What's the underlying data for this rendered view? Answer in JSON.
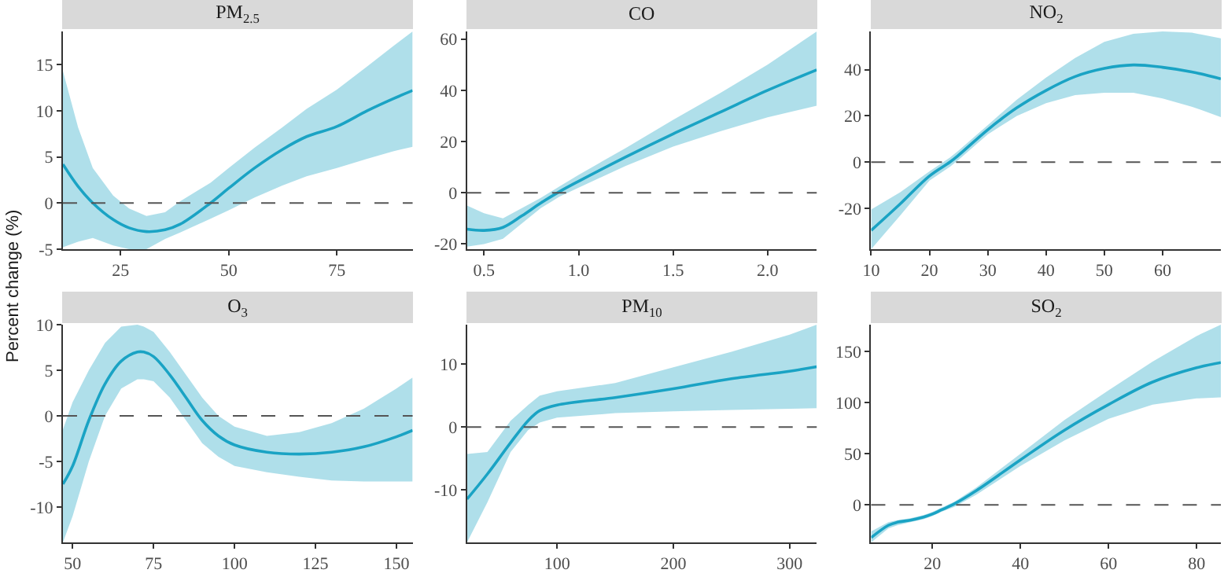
{
  "chart_data": [
    {
      "type": "line",
      "title": "PM$_{2.5}$",
      "ylabel": "Percent change (%)",
      "xlim": [
        11.7,
        92.5
      ],
      "xticks": [
        25,
        50,
        75
      ],
      "ylim": [
        -5,
        18.6
      ],
      "yticks": [
        -5,
        0,
        5,
        10,
        15
      ],
      "ref_lines": [
        {
          "axis": "y",
          "value": 0,
          "line_style": "dashed",
          "color": "#555555"
        }
      ],
      "series": [
        {
          "color": "#1aa3c4",
          "x": [
            11.7,
            15.2,
            18.6,
            23.3,
            27,
            31,
            35.3,
            38.8,
            45.8,
            50,
            56,
            62.4,
            68,
            75,
            82,
            88,
            92.5
          ],
          "values": [
            4.2,
            1.8,
            0,
            -1.8,
            -2.7,
            -3.1,
            -2.9,
            -2.3,
            0,
            1.6,
            3.8,
            5.8,
            7.2,
            8.3,
            10,
            11.3,
            12.2
          ],
          "lower": [
            -4.8,
            -4.2,
            -3.8,
            -4.6,
            -5,
            -5,
            -3.9,
            -3.2,
            -1.7,
            -0.8,
            0.6,
            1.9,
            2.9,
            3.8,
            4.8,
            5.6,
            6.1
          ],
          "upper": [
            14.3,
            8.2,
            3.8,
            0.8,
            -0.6,
            -1.4,
            -1,
            0.2,
            2.2,
            3.8,
            6,
            8.2,
            10.2,
            12.3,
            14.8,
            17,
            18.6
          ]
        }
      ]
    },
    {
      "type": "line",
      "title": "CO",
      "xlim": [
        0.41,
        2.26
      ],
      "xticks": [
        0.5,
        {
          "value": 1,
          "label": "1.0"
        },
        1.5,
        {
          "value": 2,
          "label": "2.0"
        }
      ],
      "ylim": [
        -22,
        63
      ],
      "yticks": [
        -20,
        0,
        20,
        40,
        60
      ],
      "ref_lines": [
        {
          "axis": "y",
          "value": 0,
          "line_style": "dashed",
          "color": "#555555"
        }
      ],
      "series": [
        {
          "color": "#1aa3c4",
          "x": [
            0.41,
            0.5,
            0.6,
            0.7,
            0.8,
            0.9,
            1.0,
            1.25,
            1.5,
            1.75,
            2.0,
            2.26
          ],
          "values": [
            -14.2,
            -14.7,
            -13.5,
            -9,
            -4,
            0.5,
            4.5,
            14,
            23,
            31.5,
            40,
            48
          ],
          "lower": [
            -21,
            -20,
            -18,
            -12,
            -6,
            -1.5,
            2,
            10.5,
            18,
            24,
            29.5,
            34
          ],
          "upper": [
            -5,
            -8,
            -10,
            -6,
            -2,
            2.5,
            7,
            17.5,
            28.5,
            39,
            50,
            63
          ]
        }
      ]
    },
    {
      "type": "line",
      "title": "NO$_{2}$",
      "xlim": [
        10,
        70
      ],
      "xticks": [
        10,
        20,
        30,
        40,
        50,
        60
      ],
      "ylim": [
        -37.6,
        56.5
      ],
      "yticks": [
        -20,
        0,
        20,
        40
      ],
      "ref_lines": [
        {
          "axis": "y",
          "value": 0,
          "line_style": "dashed",
          "color": "#555555"
        }
      ],
      "series": [
        {
          "color": "#1aa3c4",
          "x": [
            10,
            15,
            20,
            23.5,
            25,
            30,
            35,
            40,
            45,
            50,
            55,
            60,
            65,
            70
          ],
          "values": [
            -29.5,
            -18,
            -6,
            0,
            3,
            14,
            23.5,
            31,
            37,
            40.5,
            42,
            41,
            39,
            36
          ],
          "lower": [
            -37.6,
            -23,
            -8,
            -2,
            1,
            12,
            20,
            25.5,
            29,
            30,
            30,
            27.5,
            24,
            19.5
          ],
          "upper": [
            -20.5,
            -13,
            -4,
            2,
            5,
            16,
            27,
            36.5,
            45,
            52,
            55.5,
            56.5,
            56,
            53.5
          ]
        }
      ]
    },
    {
      "type": "line",
      "title": "O$_{3}$",
      "xlim": [
        47,
        155
      ],
      "xticks": [
        50,
        75,
        100,
        125,
        150
      ],
      "ylim": [
        -13.9,
        10
      ],
      "yticks": [
        -10,
        -5,
        0,
        5,
        10
      ],
      "ref_lines": [
        {
          "axis": "y",
          "value": 0,
          "line_style": "dashed",
          "color": "#555555"
        }
      ],
      "series": [
        {
          "color": "#1aa3c4",
          "x": [
            47,
            50,
            55,
            60,
            65,
            70,
            72,
            75,
            80,
            85,
            90,
            95,
            100,
            110,
            120,
            130,
            140,
            150,
            155
          ],
          "values": [
            -7.5,
            -5.5,
            -0.5,
            3.5,
            6,
            7,
            7,
            6.5,
            4.5,
            2,
            -0.5,
            -2.2,
            -3.2,
            -4,
            -4.2,
            -4,
            -3.4,
            -2.3,
            -1.6
          ],
          "lower": [
            -13.9,
            -11,
            -5,
            0,
            3,
            4,
            4,
            3.8,
            2,
            -0.5,
            -3,
            -4.5,
            -5.5,
            -6.2,
            -6.7,
            -7.1,
            -7.2,
            -7.2,
            -7.2
          ],
          "upper": [
            -1.5,
            1.5,
            5,
            8,
            9.8,
            10,
            9.8,
            9.2,
            7,
            4.5,
            2,
            0,
            -1.2,
            -2.2,
            -1.8,
            -0.8,
            0.8,
            3,
            4.2
          ]
        }
      ]
    },
    {
      "type": "line",
      "title": "PM$_{10}$",
      "xlim": [
        22.5,
        323.4
      ],
      "xticks": [
        100,
        200,
        300
      ],
      "ylim": [
        -18.4,
        16.3
      ],
      "yticks": [
        -10,
        0,
        10
      ],
      "ref_lines": [
        {
          "axis": "y",
          "value": 0,
          "line_style": "dashed",
          "color": "#555555"
        }
      ],
      "series": [
        {
          "color": "#1aa3c4",
          "x": [
            22.5,
            40,
            60,
            75,
            85,
            100,
            150,
            200,
            250,
            300,
            323.4
          ],
          "values": [
            -11.5,
            -7.5,
            -2.5,
            1,
            2.6,
            3.5,
            4.7,
            6.1,
            7.7,
            8.9,
            9.6
          ],
          "lower": [
            -18.4,
            -12,
            -4,
            -0.5,
            0.7,
            1.5,
            2.2,
            2.5,
            2.7,
            2.9,
            3
          ],
          "upper": [
            -4.3,
            -4,
            1,
            3.5,
            5,
            5.7,
            7,
            9.5,
            12,
            14.7,
            16.3
          ]
        }
      ]
    },
    {
      "type": "line",
      "title": "SO$_{2}$",
      "xlim": [
        6.1,
        85.5
      ],
      "xticks": [
        20,
        40,
        60,
        80
      ],
      "ylim": [
        -36.7,
        176
      ],
      "yticks": [
        0,
        50,
        100,
        150
      ],
      "ref_lines": [
        {
          "axis": "y",
          "value": 0,
          "line_style": "dashed",
          "color": "#555555"
        }
      ],
      "series": [
        {
          "color": "#1aa3c4",
          "x": [
            6.1,
            10,
            12,
            15,
            18,
            20,
            22,
            25,
            30,
            40,
            50,
            60,
            70,
            80,
            85.5
          ],
          "values": [
            -32,
            -20,
            -17,
            -15,
            -12,
            -9,
            -5,
            1,
            14,
            44,
            73,
            98,
            120,
            134,
            139
          ],
          "lower": [
            -36.7,
            -23,
            -20,
            -17,
            -14,
            -11,
            -7,
            -2,
            10,
            38,
            63,
            84,
            98,
            104,
            105
          ],
          "upper": [
            -26,
            -17,
            -15,
            -13,
            -10,
            -7,
            -3,
            3,
            17,
            50,
            83,
            112,
            140,
            165,
            176
          ]
        }
      ]
    }
  ]
}
